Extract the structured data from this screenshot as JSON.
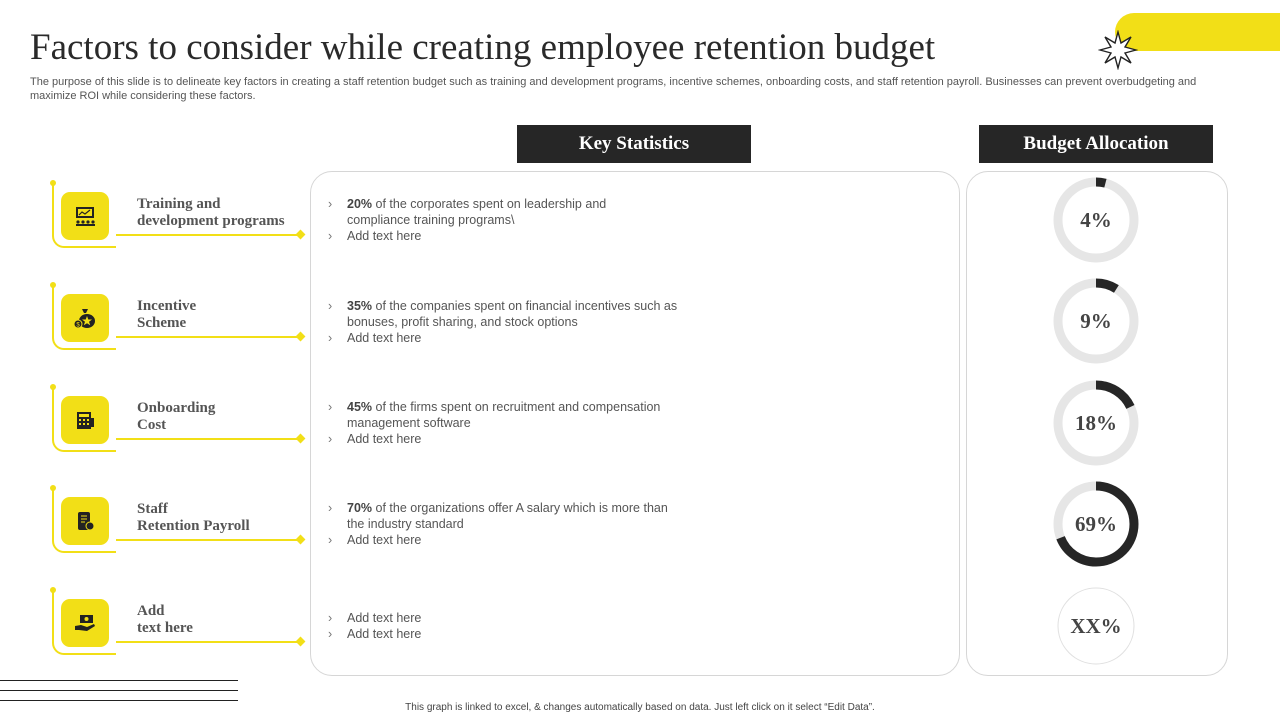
{
  "title": "Factors to consider while creating employee retention budget",
  "subtitle": "The purpose of this slide is to delineate key factors in creating a staff retention budget such as training and development programs, incentive schemes, onboarding costs, and staff retention payroll. Businesses can prevent overbudgeting and maximize ROI while considering these factors.",
  "headers": {
    "key_statistics": "Key Statistics",
    "budget_allocation": "Budget Allocation"
  },
  "accent_color": "#f2df17",
  "dark_color": "#262626",
  "factors": [
    {
      "label_line1": "Training and",
      "label_line2": "development programs",
      "icon": "presentation-icon",
      "stat_bold": "20%",
      "stat_text": " of the corporates spent on leadership and",
      "stat_text2": "compliance training programs\\",
      "extra": "Add text here",
      "percent_label": "4%",
      "percent": 4
    },
    {
      "label_line1": "Incentive",
      "label_line2": "Scheme",
      "icon": "money-bag-icon",
      "stat_bold": "35%",
      "stat_text": " of the companies spent on financial incentives such as",
      "stat_text2": "bonuses, profit sharing, and stock options",
      "extra": "Add text here",
      "percent_label": "9%",
      "percent": 9
    },
    {
      "label_line1": "Onboarding",
      "label_line2": "Cost",
      "icon": "calculator-icon",
      "stat_bold": "45%",
      "stat_text": " of the firms spent on recruitment and compensation",
      "stat_text2": "management software",
      "extra": "Add text here",
      "percent_label": "18%",
      "percent": 18
    },
    {
      "label_line1": "Staff",
      "label_line2": "Retention Payroll",
      "icon": "payroll-scroll-icon",
      "stat_bold": "70%",
      "stat_text": " of the organizations offer A salary which is more than",
      "stat_text2": "the industry standard",
      "extra": "Add text here",
      "percent_label": "69%",
      "percent": 69
    },
    {
      "label_line1": "Add",
      "label_line2": "text here",
      "icon": "hand-money-icon",
      "bullet1": "Add text here",
      "bullet2": "Add text here",
      "percent_label": "XX%"
    }
  ],
  "footnote": "This graph is linked to excel, & changes automatically based on data. Just left click on it select “Edit Data”."
}
